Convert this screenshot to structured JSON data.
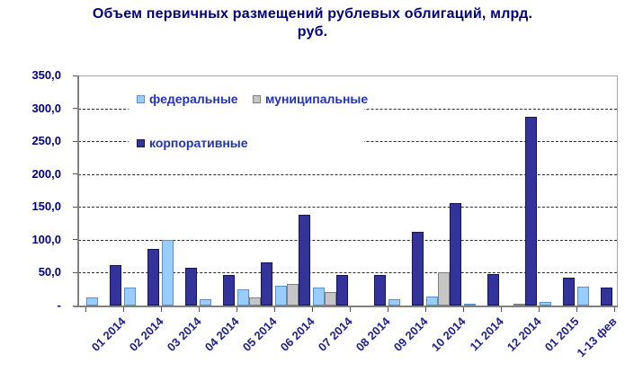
{
  "chart_data": {
    "type": "bar",
    "title": "Объем первичных размещений рублевых облигаций, млрд. руб.",
    "title_lines": [
      "Объем первичных размещений рублевых облигаций, млрд.",
      "руб."
    ],
    "categories": [
      "01 2014",
      "02 2014",
      "03 2014",
      "04 2014",
      "05 2014",
      "06 2014",
      "07 2014",
      "08 2014",
      "09 2014",
      "10 2014",
      "11 2014",
      "12 2014",
      "01 2015",
      "1-13 фев"
    ],
    "series": [
      {
        "name": "федеральные",
        "color": "#99CCFF",
        "border_color": "#5B8FCC",
        "values": [
          12,
          27,
          100,
          9,
          25,
          30,
          28,
          0,
          10,
          14,
          2,
          0,
          5,
          29
        ]
      },
      {
        "name": "муниципальные",
        "color": "#C6C6C6",
        "border_color": "#7F7F7F",
        "values": [
          0,
          0,
          0,
          0,
          12,
          33,
          20,
          0,
          0,
          51,
          0,
          2,
          0,
          0
        ]
      },
      {
        "name": "корпоративные",
        "color": "#333399",
        "border_color": "#14145A",
        "values": [
          62,
          86,
          57,
          46,
          66,
          138,
          47,
          46,
          112,
          156,
          48,
          287,
          43,
          28
        ]
      }
    ],
    "ylim": [
      0,
      350
    ],
    "ytick_step": 50,
    "yticks": [
      {
        "label": "350,0",
        "value": 350
      },
      {
        "label": "300,0",
        "value": 300
      },
      {
        "label": "250,0",
        "value": 250
      },
      {
        "label": "200,0",
        "value": 200
      },
      {
        "label": "150,0",
        "value": 150
      },
      {
        "label": "100,0",
        "value": 100
      },
      {
        "label": "50,0",
        "value": 50
      },
      {
        "label": "-",
        "value": 0
      }
    ],
    "grid": "horizontal-dashed",
    "legend_position": "inside-top-left-two-rows",
    "accent_colors": {
      "title_text": "#000080",
      "axis_label_text": "#1F1F8F",
      "legend_text": "#2233BB"
    }
  }
}
